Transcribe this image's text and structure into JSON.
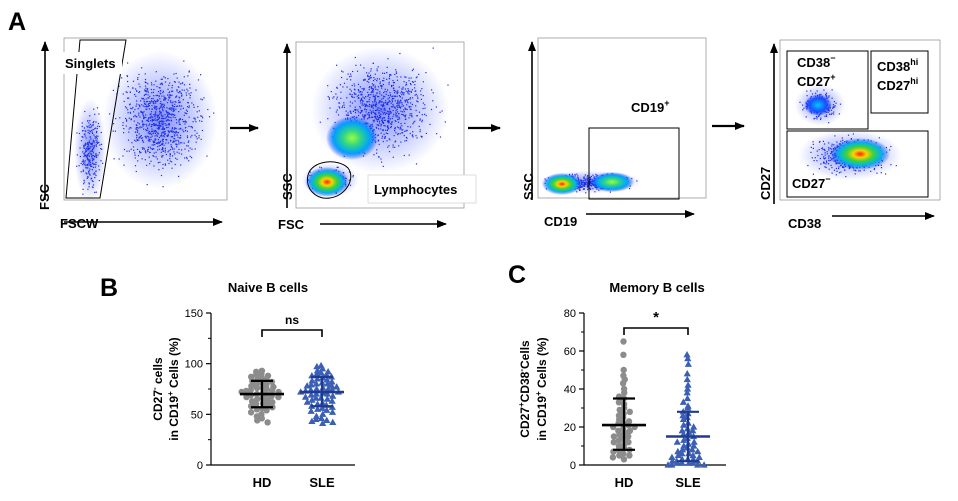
{
  "panels": {
    "a": "A",
    "b": "B",
    "c": "C"
  },
  "flow": [
    {
      "xlabel": "FSCW",
      "ylabel": "FSC",
      "gates": [
        {
          "label": "Singlets"
        }
      ]
    },
    {
      "xlabel": "FSC",
      "ylabel": "SSC",
      "gates": [
        {
          "label": "Lymphocytes"
        }
      ]
    },
    {
      "xlabel": "CD19",
      "ylabel": "SSC",
      "gates": [
        {
          "label": "CD19",
          "sup": "+"
        }
      ]
    },
    {
      "xlabel": "CD38",
      "ylabel": "CD27",
      "gates": [
        {
          "line1": "CD38",
          "line1_sup": "−",
          "line2": "CD27",
          "line2_sup": "+"
        },
        {
          "line1": "CD38",
          "line1_sup": "hi",
          "line2": "CD27",
          "line2_sup": "hi"
        },
        {
          "label": "CD27",
          "sup": "−"
        }
      ]
    }
  ],
  "chart_data": [
    {
      "type": "scatter",
      "title": "Naive B cells",
      "ylabel_line1": {
        "a": "CD27",
        "sup": "-",
        "b": " cells"
      },
      "ylabel_line2": {
        "a": "in CD19",
        "sup": "+",
        "b": " Cells (%)"
      },
      "ylim": [
        0,
        150
      ],
      "yticks": [
        "0",
        "50",
        "100",
        "150"
      ],
      "categories": [
        "HD",
        "SLE"
      ],
      "series": [
        {
          "category": "HD",
          "color": "#8c8c8c",
          "marker": "circle",
          "mean": 70,
          "sd_low": 57,
          "sd_high": 83,
          "bar_color": "#000000",
          "values": [
            93,
            92,
            90,
            89,
            88,
            87,
            86,
            85,
            84,
            83,
            82,
            81,
            80,
            79,
            78,
            77,
            76,
            76,
            75,
            74,
            73,
            73,
            72,
            72,
            71,
            70,
            70,
            69,
            68,
            67,
            67,
            66,
            65,
            64,
            63,
            62,
            61,
            60,
            59,
            58,
            57,
            56,
            55,
            54,
            52,
            50,
            48,
            46,
            44,
            42
          ]
        },
        {
          "category": "SLE",
          "color": "#3a5fb5",
          "marker": "triangle",
          "mean": 72,
          "sd_low": 58,
          "sd_high": 87,
          "bar_color": "#1f3a8f",
          "values": [
            98,
            97,
            95,
            93,
            92,
            91,
            90,
            89,
            88,
            87,
            86,
            85,
            84,
            83,
            82,
            81,
            80,
            80,
            79,
            78,
            78,
            77,
            76,
            75,
            75,
            74,
            74,
            73,
            72,
            72,
            71,
            70,
            70,
            69,
            68,
            67,
            66,
            66,
            65,
            64,
            63,
            62,
            61,
            60,
            59,
            58,
            57,
            56,
            55,
            54,
            53,
            52,
            50,
            48,
            46,
            45,
            44,
            43,
            42,
            41
          ]
        }
      ],
      "annotation": {
        "text": "ns"
      }
    },
    {
      "type": "scatter",
      "title": "Memory B cells",
      "ylabel_line1": {
        "a": "CD27",
        "sup": "+",
        "b": "CD38",
        "sup2": "-",
        "c": "Cells"
      },
      "ylabel_line2": {
        "a": "in CD19",
        "sup": "+",
        "b": " Cells (%)"
      },
      "ylim": [
        0,
        80
      ],
      "yticks": [
        "0",
        "20",
        "40",
        "60",
        "80"
      ],
      "categories": [
        "HD",
        "SLE"
      ],
      "series": [
        {
          "category": "HD",
          "color": "#8c8c8c",
          "marker": "circle",
          "mean": 21,
          "sd_low": 8,
          "sd_high": 35,
          "bar_color": "#000000",
          "values": [
            65,
            58,
            50,
            47,
            45,
            43,
            40,
            38,
            36,
            35,
            33,
            32,
            30,
            29,
            28,
            27,
            26,
            25,
            24,
            23,
            22,
            22,
            21,
            20,
            20,
            19,
            18,
            18,
            17,
            16,
            15,
            15,
            14,
            13,
            12,
            12,
            11,
            10,
            9,
            8,
            8,
            7,
            6,
            5,
            5,
            4,
            3
          ]
        },
        {
          "category": "SLE",
          "color": "#3a5fb5",
          "marker": "triangle",
          "mean": 15,
          "sd_low": 2,
          "sd_high": 28,
          "bar_color": "#1f3a8f",
          "values": [
            58,
            56,
            53,
            48,
            45,
            42,
            40,
            38,
            35,
            33,
            31,
            30,
            28,
            27,
            26,
            25,
            24,
            22,
            21,
            20,
            19,
            18,
            18,
            17,
            16,
            15,
            14,
            13,
            12,
            12,
            11,
            10,
            10,
            9,
            8,
            8,
            7,
            7,
            6,
            6,
            5,
            5,
            4,
            4,
            3,
            3,
            3,
            2,
            2,
            2,
            1,
            1,
            1,
            1,
            0,
            0,
            0,
            0
          ]
        }
      ],
      "annotation": {
        "text": "*"
      }
    }
  ]
}
